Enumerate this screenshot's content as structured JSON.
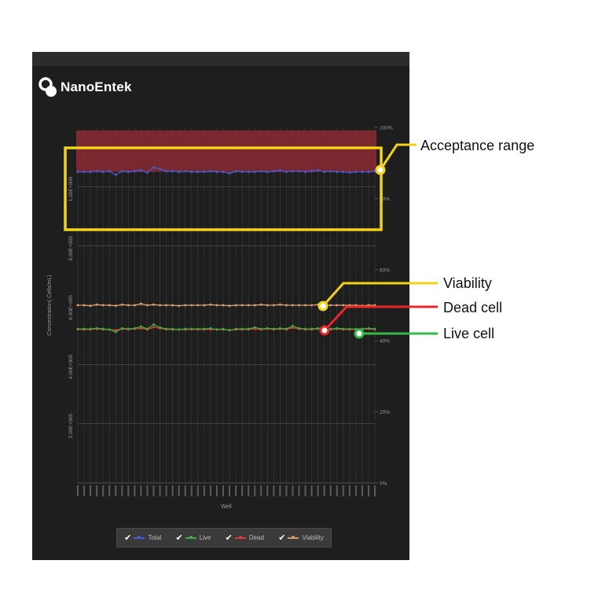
{
  "brand": {
    "name": "NanoEntek"
  },
  "chart_data": {
    "type": "line",
    "xlabel": "Well",
    "ylabel": "Concentration( Cells/mL)",
    "y_left_ticks": [
      "2.00E+005",
      "4.00E+005",
      "6.00E+005",
      "8.00E+005",
      "1.00E+006"
    ],
    "ylim_left": [
      0,
      1200000
    ],
    "y_right_ticks": [
      "0%",
      "20%",
      "40%",
      "60%",
      "80%",
      "100%"
    ],
    "ylim_right": [
      0,
      100
    ],
    "grid": true,
    "acceptance_range": {
      "low": 1050000,
      "high": 1190000,
      "color": "#8b2a32"
    },
    "x_count": 48,
    "series": [
      {
        "name": "Total",
        "color": "#4a5bd6",
        "values": [
          1050000,
          1050000,
          1050000,
          1052000,
          1050000,
          1052000,
          1040000,
          1052000,
          1050000,
          1052000,
          1055000,
          1048000,
          1065000,
          1060000,
          1052000,
          1052000,
          1050000,
          1052000,
          1050000,
          1050000,
          1050000,
          1052000,
          1050000,
          1050000,
          1045000,
          1052000,
          1050000,
          1050000,
          1050000,
          1052000,
          1050000,
          1052000,
          1055000,
          1050000,
          1052000,
          1052000,
          1050000,
          1052000,
          1055000,
          1050000,
          1052000,
          1050000,
          1050000,
          1048000,
          1050000,
          1050000,
          1050000,
          1052000
        ]
      },
      {
        "name": "Live",
        "color": "#3fae3f",
        "values": [
          520000,
          520000,
          520000,
          522000,
          520000,
          518000,
          510000,
          522000,
          520000,
          522000,
          528000,
          520000,
          535000,
          525000,
          520000,
          520000,
          518000,
          520000,
          520000,
          520000,
          520000,
          522000,
          518000,
          520000,
          515000,
          520000,
          520000,
          520000,
          525000,
          520000,
          522000,
          520000,
          522000,
          520000,
          530000,
          522000,
          520000,
          520000,
          522000,
          520000,
          520000,
          522000,
          520000,
          520000,
          520000,
          520000,
          522000,
          520000
        ]
      },
      {
        "name": "Dead",
        "color": "#d83a3a",
        "values": [
          518000,
          518000,
          518000,
          520000,
          518000,
          518000,
          516000,
          520000,
          518000,
          520000,
          522000,
          518000,
          526000,
          522000,
          518000,
          518000,
          518000,
          518000,
          518000,
          518000,
          518000,
          518000,
          518000,
          518000,
          516000,
          518000,
          518000,
          518000,
          520000,
          518000,
          520000,
          518000,
          520000,
          518000,
          524000,
          520000,
          518000,
          518000,
          520000,
          518000,
          518000,
          520000,
          518000,
          518000,
          518000,
          518000,
          520000,
          518000
        ]
      },
      {
        "name": "Viability",
        "color": "#d89a6a",
        "values": [
          600000,
          600000,
          598000,
          602000,
          600000,
          600000,
          598000,
          602000,
          600000,
          600000,
          605000,
          600000,
          602000,
          600000,
          600000,
          600000,
          598000,
          600000,
          600000,
          600000,
          600000,
          602000,
          600000,
          600000,
          598000,
          600000,
          600000,
          600000,
          600000,
          602000,
          600000,
          600000,
          602000,
          600000,
          600000,
          600000,
          600000,
          600000,
          602000,
          600000,
          600000,
          600000,
          600000,
          600000,
          600000,
          598000,
          600000,
          600000
        ]
      }
    ]
  },
  "legend": [
    {
      "label": "Total",
      "color": "#4a5bd6"
    },
    {
      "label": "Live",
      "color": "#3fae3f"
    },
    {
      "label": "Dead",
      "color": "#d83a3a"
    },
    {
      "label": "Viability",
      "color": "#d89a6a"
    }
  ],
  "annotations": [
    {
      "label": "Acceptance range",
      "color": "#f2d21b"
    },
    {
      "label": "Viability",
      "color": "#f2d21b"
    },
    {
      "label": "Dead cell",
      "color": "#e8262a"
    },
    {
      "label": "Live cell",
      "color": "#3bb54a"
    }
  ]
}
